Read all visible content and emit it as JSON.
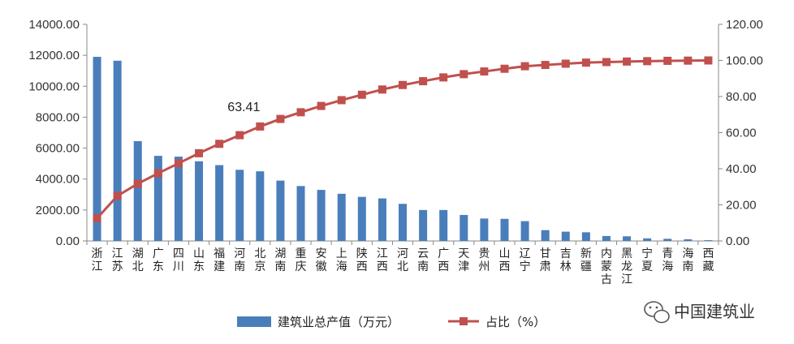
{
  "chart_data": {
    "type": "bar",
    "categories": [
      "浙江",
      "江苏",
      "湖北",
      "广东",
      "四川",
      "山东",
      "福建",
      "河南",
      "北京",
      "湖南",
      "重庆",
      "安徽",
      "上海",
      "陕西",
      "江西",
      "河北",
      "云南",
      "广西",
      "天津",
      "贵州",
      "山西",
      "辽宁",
      "甘肃",
      "吉林",
      "新疆",
      "内蒙古",
      "黑龙江",
      "宁夏",
      "青海",
      "海南",
      "西藏"
    ],
    "series": [
      {
        "name": "建筑业总产值（万元）",
        "type": "bar",
        "axis": "left",
        "color": "#4a7ebb",
        "values": [
          11900,
          11650,
          6450,
          5500,
          5450,
          5150,
          4900,
          4600,
          4500,
          3900,
          3550,
          3300,
          3050,
          2850,
          2750,
          2400,
          2000,
          2000,
          1680,
          1450,
          1430,
          1280,
          700,
          600,
          560,
          320,
          300,
          170,
          140,
          110,
          50
        ]
      },
      {
        "name": "占比（%）",
        "type": "line",
        "axis": "right",
        "color": "#c0504d",
        "values": [
          12.6,
          25.0,
          31.7,
          37.5,
          43.0,
          48.6,
          53.8,
          58.6,
          63.41,
          67.6,
          71.3,
          74.8,
          78.0,
          81.0,
          83.9,
          86.4,
          88.5,
          90.6,
          92.4,
          93.9,
          95.4,
          96.8,
          97.5,
          98.2,
          98.8,
          99.1,
          99.4,
          99.6,
          99.8,
          99.9,
          100.0
        ]
      }
    ],
    "y_left": {
      "ylim": [
        0,
        14000
      ],
      "ticks": [
        "0.00",
        "2000.00",
        "4000.00",
        "6000.00",
        "8000.00",
        "10000.00",
        "12000.00",
        "14000.00"
      ]
    },
    "y_right": {
      "ylim": [
        0,
        120
      ],
      "ticks": [
        "0.00",
        "20.00",
        "40.00",
        "60.00",
        "80.00",
        "100.00",
        "120.00"
      ]
    },
    "annotation": {
      "text": "63.41",
      "index": 8
    },
    "legend_position": "bottom",
    "grid": false
  },
  "watermark": {
    "text": "中国建筑业"
  }
}
